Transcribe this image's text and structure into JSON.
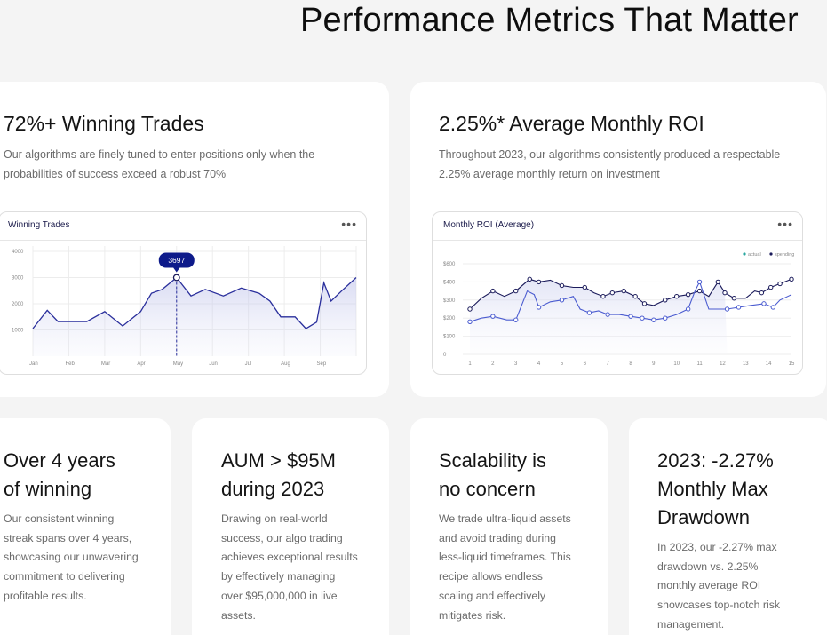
{
  "page": {
    "title": "Performance Metrics That Matter"
  },
  "cards": {
    "winning": {
      "heading": "72%+ Winning Trades",
      "text_line1": "Our algorithms are finely tuned to enter positions only when the",
      "text_line2": "probabilities of success exceed a robust 70%"
    },
    "roi": {
      "heading": "2.25%* Average Monthly ROI",
      "text_line1": "Throughout 2023, our algorithms consistently produced a respectable",
      "text_line2": "2.25% average monthly return on investment"
    }
  },
  "small_cards": [
    {
      "heading": [
        "Over 4 years",
        "of winning"
      ],
      "text": [
        "Our consistent winning",
        "streak spans over 4 years,",
        "showcasing our unwavering",
        "commitment to delivering",
        "profitable results."
      ]
    },
    {
      "heading": [
        "AUM > $95M",
        "during 2023"
      ],
      "text": [
        "Drawing on real-world",
        "success, our algo trading",
        "achieves exceptional results",
        "by effectively managing",
        "over $95,000,000 in live",
        "assets."
      ]
    },
    {
      "heading": [
        "Scalability is",
        "no concern"
      ],
      "text": [
        "We trade ultra-liquid assets",
        "and avoid trading during",
        "less-liquid timeframes. This",
        "recipe allows endless",
        "scaling and effectively",
        "mitigates risk."
      ]
    },
    {
      "heading": [
        "2023: -2.27%",
        "Monthly Max",
        "Drawdown"
      ],
      "text": [
        "In 2023, our -2.27% max",
        "drawdown vs. 2.25%",
        "monthly average ROI",
        "showcases top-notch risk",
        "management."
      ]
    }
  ],
  "chart_data": [
    {
      "type": "area",
      "title": "Winning Trades",
      "menu": "•••",
      "yticks": [
        "4000",
        "3000",
        "2000",
        "1000"
      ],
      "ylim": [
        0,
        4000
      ],
      "categories": [
        "Jan",
        "Feb",
        "Mar",
        "Apr",
        "May",
        "Jun",
        "Jul",
        "Aug",
        "Sep"
      ],
      "tooltip": {
        "label": "3697",
        "category": "May"
      },
      "series": [
        {
          "x": [
            0,
            0.4,
            0.7,
            1.0,
            1.5,
            2.0,
            2.5,
            3.0,
            3.3,
            3.6,
            4.0,
            4.4,
            4.8,
            5.3,
            5.8,
            6.3,
            6.6,
            6.9,
            7.3,
            7.6,
            7.9,
            8.1,
            8.3,
            8.6,
            9.0
          ],
          "values": [
            1050,
            1750,
            1320,
            1320,
            1320,
            1700,
            1150,
            1700,
            2400,
            2550,
            3000,
            2300,
            2550,
            2300,
            2600,
            2400,
            2100,
            1500,
            1500,
            1050,
            1300,
            2800,
            2100,
            2500,
            3000
          ]
        }
      ]
    },
    {
      "type": "line",
      "title": "Monthly ROI (Average)",
      "menu": "•••",
      "yticks": [
        "$600",
        "$400",
        "$300",
        "$200",
        "$100",
        "0"
      ],
      "ylim": [
        0,
        600
      ],
      "x": [
        "1",
        "2",
        "3",
        "4",
        "5",
        "6",
        "7",
        "8",
        "9",
        "10",
        "11",
        "12",
        "13",
        "14",
        "15"
      ],
      "legend": {
        "position": "top-right",
        "items": [
          "actual",
          "spending"
        ]
      },
      "colors": {
        "actual": "#4a5bd0",
        "spending": "#1a1a5a"
      },
      "series": [
        {
          "name": "spending",
          "x": [
            1,
            1.5,
            2,
            2.5,
            3,
            3.6,
            4,
            4.5,
            5,
            5.5,
            6,
            6.4,
            6.8,
            7.2,
            7.7,
            8.2,
            8.6,
            9,
            9.5,
            10,
            10.5,
            11,
            11.4,
            11.8,
            12.1,
            12.5,
            13,
            13.4,
            13.7,
            14.1,
            14.5,
            15
          ],
          "values": [
            250,
            310,
            350,
            320,
            350,
            430,
            400,
            420,
            380,
            370,
            370,
            340,
            320,
            340,
            350,
            320,
            280,
            270,
            300,
            320,
            330,
            350,
            320,
            400,
            340,
            310,
            310,
            350,
            340,
            370,
            390,
            430
          ]
        },
        {
          "name": "actual",
          "x": [
            1,
            1.5,
            2,
            2.6,
            3,
            3.5,
            3.8,
            4,
            4.5,
            5,
            5.5,
            5.8,
            6.2,
            6.6,
            7,
            7.5,
            8,
            8.5,
            9,
            9.5,
            10,
            10.5,
            10.8,
            11,
            11.4,
            11.8,
            12.2,
            12.7,
            13.2,
            13.8,
            14.2,
            14.5,
            15
          ],
          "values": [
            180,
            200,
            210,
            190,
            190,
            350,
            330,
            260,
            290,
            300,
            320,
            250,
            230,
            240,
            220,
            220,
            210,
            200,
            190,
            200,
            220,
            250,
            350,
            400,
            250,
            250,
            250,
            260,
            270,
            280,
            260,
            300,
            330
          ]
        }
      ]
    }
  ]
}
